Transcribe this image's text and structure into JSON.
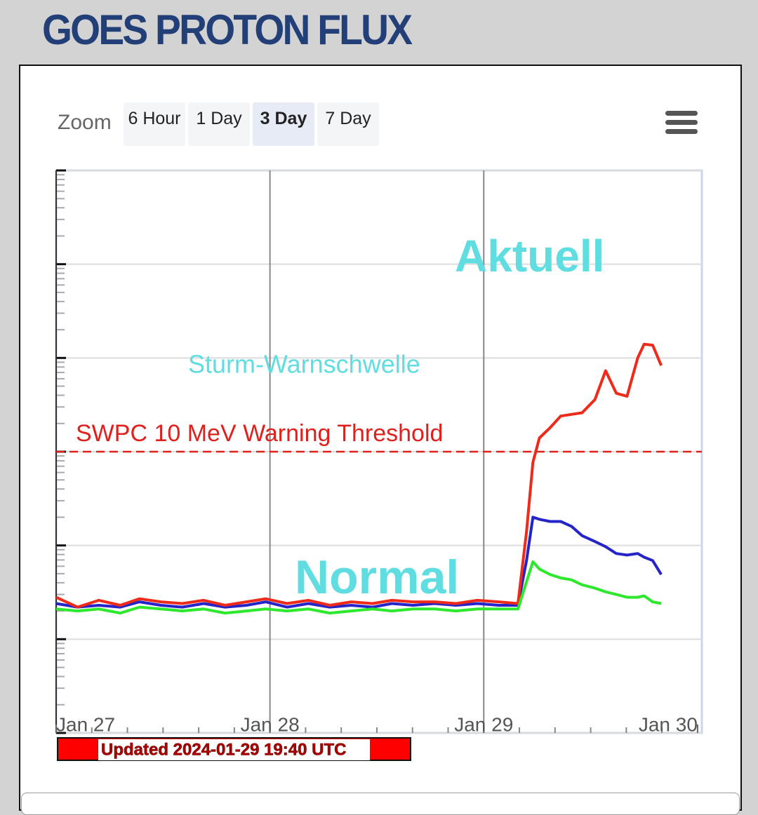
{
  "header": {
    "title": "GOES PROTON FLUX"
  },
  "zoom": {
    "label": "Zoom",
    "buttons": [
      "6 Hour",
      "1 Day",
      "3 Day",
      "7 Day"
    ],
    "active": 2
  },
  "updated": "Updated 2024-01-29 19:40 UTC",
  "chart_data": {
    "type": "line",
    "log_scale": true,
    "grid": true,
    "x": [
      27.0,
      27.1,
      27.2,
      27.3,
      27.39,
      27.49,
      27.59,
      27.69,
      27.79,
      27.89,
      27.98,
      28.08,
      28.18,
      28.28,
      28.38,
      28.48,
      28.57,
      28.67,
      28.77,
      28.87,
      28.97,
      29.07,
      29.16,
      29.2,
      29.23,
      29.26,
      29.31,
      29.36,
      29.41,
      29.46,
      29.52,
      29.57,
      29.62,
      29.67,
      29.72,
      29.75,
      29.79,
      29.83
    ],
    "xlim": [
      27,
      30.02
    ],
    "xticks": [
      {
        "value": 27,
        "label": "Jan 27"
      },
      {
        "value": 28,
        "label": "Jan 28"
      },
      {
        "value": 29,
        "label": "Jan 29"
      },
      {
        "value": 30,
        "label": "Jan 30"
      }
    ],
    "ylim": [
      0.01,
      10000
    ],
    "yticks": [
      0.01,
      0.1,
      1,
      10,
      100,
      1000,
      10000
    ],
    "series": [
      {
        "color": "#2424c8",
        "values": [
          0.24,
          0.22,
          0.23,
          0.22,
          0.25,
          0.23,
          0.22,
          0.24,
          0.22,
          0.23,
          0.25,
          0.22,
          0.24,
          0.22,
          0.23,
          0.22,
          0.24,
          0.23,
          0.24,
          0.23,
          0.24,
          0.23,
          0.23,
          0.69,
          2.0,
          1.9,
          1.8,
          1.8,
          1.6,
          1.27,
          1.1,
          0.97,
          0.82,
          0.79,
          0.82,
          0.75,
          0.69,
          0.49
        ]
      },
      {
        "color": "#ee2a1a",
        "values": [
          0.28,
          0.22,
          0.26,
          0.23,
          0.27,
          0.25,
          0.24,
          0.26,
          0.23,
          0.25,
          0.27,
          0.24,
          0.26,
          0.23,
          0.25,
          0.24,
          0.26,
          0.25,
          0.25,
          0.24,
          0.26,
          0.25,
          0.24,
          1.4,
          7.7,
          14,
          18,
          24,
          25,
          26,
          36,
          73,
          42,
          39,
          100,
          140,
          137,
          83
        ]
      },
      {
        "color": "#2ee82e",
        "values": [
          0.21,
          0.2,
          0.21,
          0.19,
          0.22,
          0.21,
          0.2,
          0.21,
          0.19,
          0.2,
          0.21,
          0.2,
          0.21,
          0.19,
          0.2,
          0.21,
          0.2,
          0.21,
          0.21,
          0.2,
          0.21,
          0.21,
          0.21,
          0.41,
          0.67,
          0.56,
          0.49,
          0.45,
          0.43,
          0.38,
          0.35,
          0.32,
          0.3,
          0.28,
          0.28,
          0.29,
          0.25,
          0.24
        ]
      }
    ],
    "threshold": {
      "value": 10,
      "label": "SWPC 10 MeV Warning Threshold",
      "color": "#e0201c"
    },
    "annotations": [
      "Aktuell",
      "Sturm-Warnschwelle",
      "Normal"
    ]
  }
}
